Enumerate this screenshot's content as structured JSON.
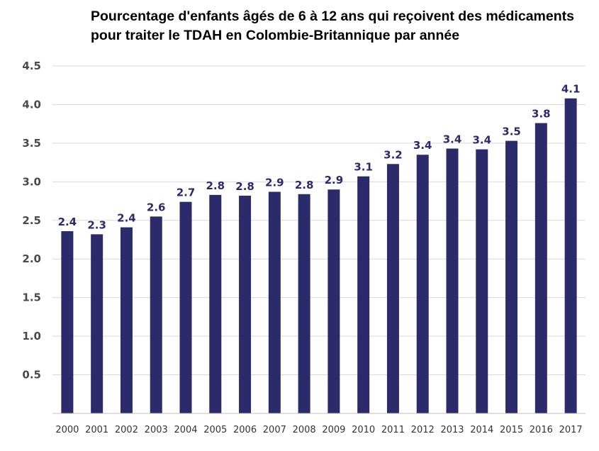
{
  "chart_data": {
    "type": "bar",
    "title": "Pourcentage d'enfants âgés de 6 à 12 ans qui reçoivent des médicaments pour traiter le TDAH en Colombie-Britannique par année",
    "title_lines": [
      "Pourcentage d'enfants âgés de 6 à 12 ans qui reçoivent des médicaments",
      "pour traiter le TDAH en Colombie-Britannique par année"
    ],
    "xlabel": "",
    "ylabel": "",
    "categories": [
      "2000",
      "2001",
      "2002",
      "2003",
      "2004",
      "2005",
      "2006",
      "2007",
      "2008",
      "2009",
      "2010",
      "2011",
      "2012",
      "2013",
      "2014",
      "2015",
      "2016",
      "2017"
    ],
    "values": [
      2.36,
      2.32,
      2.41,
      2.55,
      2.74,
      2.83,
      2.82,
      2.87,
      2.84,
      2.9,
      3.07,
      3.23,
      3.35,
      3.43,
      3.42,
      3.53,
      3.76,
      4.08
    ],
    "data_labels": [
      "2.4",
      "2.3",
      "2.4",
      "2.6",
      "2.7",
      "2.8",
      "2.8",
      "2.9",
      "2.8",
      "2.9",
      "3.1",
      "3.2",
      "3.4",
      "3.4",
      "3.4",
      "3.5",
      "3.8",
      "4.1"
    ],
    "yticks": [
      "0.5",
      "1.0",
      "1.5",
      "2.0",
      "2.5",
      "3.0",
      "3.5",
      "4.0",
      "4.5"
    ],
    "ylim": [
      0,
      4.5
    ],
    "grid": true,
    "legend": "none",
    "colors": {
      "bar": "#2b2a6b",
      "label": "#2b2a6b",
      "grid": "#d9d9d9",
      "axis": "#bfbfbf"
    }
  }
}
